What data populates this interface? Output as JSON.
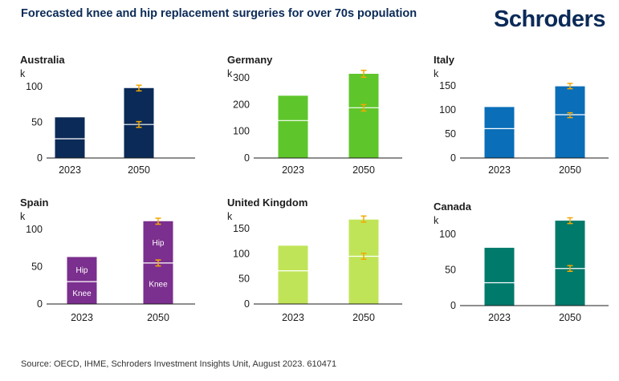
{
  "header": {
    "title": "Forecasted knee and hip replacement surgeries for over 70s population",
    "logo": "Schroders"
  },
  "footer": {
    "source": "Source: OECD, IHME, Schroders Investment Insights Unit, August 2023. 610471"
  },
  "colors": {
    "error_bar": "#f5a800",
    "split_line": "#ffffff",
    "axis": "#1c1c1c"
  },
  "chart_data": [
    {
      "type": "bar",
      "stacked": true,
      "title": "Australia",
      "ylabel": "k",
      "categories": [
        "2023",
        "2050"
      ],
      "yticks": [
        0,
        50,
        100
      ],
      "ylim": [
        0,
        110
      ],
      "color": "#0b2a57",
      "series": [
        {
          "values": [
            27,
            47
          ]
        },
        {
          "values": [
            30,
            51
          ]
        }
      ],
      "totals": [
        57,
        98
      ],
      "error_bars": [
        null,
        {
          "knee": [
            43,
            51
          ],
          "total": [
            94,
            102
          ]
        }
      ]
    },
    {
      "type": "bar",
      "stacked": true,
      "title": "Germany",
      "ylabel": "k",
      "categories": [
        "2023",
        "2050"
      ],
      "yticks": [
        0,
        100,
        200,
        300
      ],
      "ylim": [
        0,
        330
      ],
      "color": "#5ec62b",
      "series": [
        {
          "values": [
            140,
            188
          ]
        },
        {
          "values": [
            93,
            127
          ]
        }
      ],
      "totals": [
        233,
        315
      ],
      "error_bars": [
        null,
        {
          "knee": [
            176,
            200
          ],
          "total": [
            302,
            328
          ]
        }
      ]
    },
    {
      "type": "bar",
      "stacked": true,
      "title": "Italy",
      "ylabel": "k",
      "categories": [
        "2023",
        "2050"
      ],
      "yticks": [
        0,
        50,
        100,
        150
      ],
      "ylim": [
        0,
        165
      ],
      "color": "#0a6eb8",
      "series": [
        {
          "values": [
            61,
            90
          ]
        },
        {
          "values": [
            45,
            59
          ]
        }
      ],
      "totals": [
        106,
        149
      ],
      "error_bars": [
        null,
        {
          "knee": [
            84,
            94
          ],
          "total": [
            144,
            155
          ]
        }
      ]
    },
    {
      "type": "bar",
      "stacked": true,
      "title": "Spain",
      "ylabel": "k",
      "categories": [
        "2023",
        "2050"
      ],
      "yticks": [
        0,
        50,
        100
      ],
      "ylim": [
        0,
        120
      ],
      "color": "#7b2f8e",
      "series": [
        {
          "name": "Knee",
          "values": [
            30,
            55
          ]
        },
        {
          "name": "Hip",
          "values": [
            33,
            56
          ]
        }
      ],
      "totals": [
        63,
        111
      ],
      "error_bars": [
        null,
        {
          "knee": [
            51,
            59
          ],
          "total": [
            107,
            115
          ]
        }
      ]
    },
    {
      "type": "bar",
      "stacked": true,
      "title": "United Kingdom",
      "ylabel": "k",
      "categories": [
        "2023",
        "2050"
      ],
      "yticks": [
        0,
        50,
        100,
        150
      ],
      "ylim": [
        0,
        180
      ],
      "color": "#c0e458",
      "series": [
        {
          "values": [
            66,
            95
          ]
        },
        {
          "values": [
            50,
            73
          ]
        }
      ],
      "totals": [
        116,
        168
      ],
      "error_bars": [
        null,
        {
          "knee": [
            89,
            101
          ],
          "total": [
            163,
            175
          ]
        }
      ]
    },
    {
      "type": "bar",
      "stacked": true,
      "title": "Canada",
      "ylabel": "k",
      "categories": [
        "2023",
        "2050"
      ],
      "yticks": [
        0,
        50,
        100
      ],
      "ylim": [
        0,
        125
      ],
      "color": "#007a6b",
      "series": [
        {
          "values": [
            32,
            52
          ]
        },
        {
          "values": [
            49,
            67
          ]
        }
      ],
      "totals": [
        81,
        119
      ],
      "error_bars": [
        null,
        {
          "knee": [
            48,
            56
          ],
          "total": [
            115,
            123
          ]
        }
      ]
    }
  ]
}
